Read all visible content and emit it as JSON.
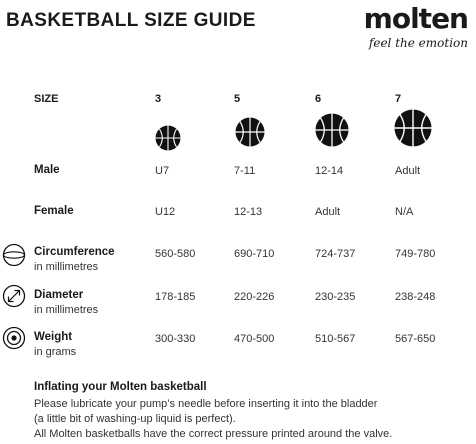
{
  "title": "BASKETBALL SIZE GUIDE",
  "brand": {
    "logo": "molten",
    "tagline": "feel the emotion"
  },
  "size_header": "SIZE",
  "sizes": [
    "3",
    "5",
    "6",
    "7"
  ],
  "rows": [
    {
      "label": "Male",
      "sub": "",
      "values": [
        "U7",
        "7-11",
        "12-14",
        "Adult"
      ]
    },
    {
      "label": "Female",
      "sub": "",
      "values": [
        "U12",
        "12-13",
        "Adult",
        "N/A"
      ]
    },
    {
      "label": "Circumference",
      "sub": "in millimetres",
      "icon": "circumference-icon",
      "values": [
        "560-580",
        "690-710",
        "724-737",
        "749-780"
      ]
    },
    {
      "label": "Diameter",
      "sub": "in millimetres",
      "icon": "diameter-icon",
      "values": [
        "178-185",
        "220-226",
        "230-235",
        "238-248"
      ]
    },
    {
      "label": "Weight",
      "sub": "in grams",
      "icon": "weight-icon",
      "values": [
        "300-330",
        "470-500",
        "510-567",
        "567-650"
      ]
    }
  ],
  "note": {
    "title": "Inflating your Molten basketball",
    "lines": [
      "Please lubricate your pump’s needle before inserting it into the bladder",
      "(a little bit of washing-up liquid is perfect).",
      "All Molten basketballs have the correct pressure printed around the valve."
    ]
  }
}
